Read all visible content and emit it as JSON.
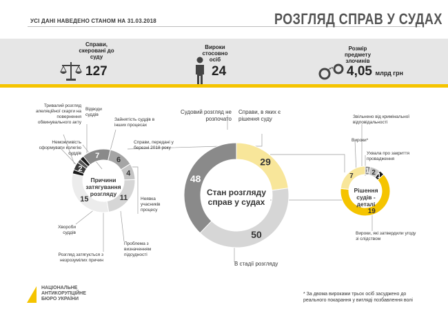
{
  "header": {
    "date_note": "УСІ ДАНІ НАВЕДЕНО СТАНОМ НА 31.03.2018",
    "title": "РОЗГЛЯД СПРАВ У СУДАХ"
  },
  "stats": [
    {
      "label": "Справи, скеровані до суду",
      "value": "127",
      "unit": ""
    },
    {
      "label": "Вироки стосовно осіб",
      "value": "24",
      "unit": ""
    },
    {
      "label": "Розмір предмету злочинів",
      "value": "4,05",
      "unit": "млрд грн"
    }
  ],
  "center_chart": {
    "title": "Стан розгляду справ у судах",
    "segments": [
      {
        "label": "Справи, в яких є рішення суду",
        "value": 29,
        "color": "#f8e69a"
      },
      {
        "label": "В стадії розгляду",
        "value": 50,
        "color": "#d6d6d6"
      },
      {
        "label": "Судовий розгляд не розпочато",
        "value": 48,
        "color": "#8a8a8a"
      }
    ]
  },
  "left_chart": {
    "title": "Причини затягування розгляду",
    "segments": [
      {
        "label": "Відводи суддів",
        "value": 7,
        "color": "#8a8a8a"
      },
      {
        "label": "Зайнятість суддів в інших процесах",
        "value": 6,
        "color": "#a5a5a5"
      },
      {
        "label": "Справи, передані у березні 2018 року",
        "value": 4,
        "color": "#c4c4c4"
      },
      {
        "label": "Неявка учасників процесу",
        "value": 11,
        "color": "#d6d6d6"
      },
      {
        "label": "Проблема з визначенням підсудності",
        "value": 15,
        "color": "#ececec"
      },
      {
        "label": "Розгляд затягується з незрозумілих причин",
        "value": 1,
        "color": "#1a1a1a"
      },
      {
        "label": "Хвороби суддів",
        "value": 2,
        "color": "#3a3a3a"
      },
      {
        "label": "Неможливість сформувати колегію суддів",
        "value": 1,
        "color": "#555555"
      },
      {
        "label": "Тривалий розгляд апеляційної скарги на повернення обвинувального акту",
        "value": 1,
        "color": "#1a1a1a"
      }
    ],
    "display_labels": [
      "7",
      "6",
      "4",
      "11",
      "15",
      "2",
      "1"
    ]
  },
  "right_chart": {
    "title": "Рішення судів - деталі",
    "footnote_mark": "*",
    "segments": [
      {
        "label": "Звільнено від кримінальної відповідальності",
        "value": 1,
        "color": "#8a8a8a"
      },
      {
        "label": "Вироки*",
        "value": 2,
        "color": "#c4c4c4"
      },
      {
        "label": "Ухвала про закриття провадження",
        "value": 1,
        "color": "#1a1a1a"
      },
      {
        "label": "Вироки, які затвердили угоду зі слідством",
        "value": 19,
        "color": "#f5c400"
      },
      {
        "label": "Вироки",
        "value": 7,
        "color": "#f8e69a"
      }
    ]
  },
  "footnote": "* За двома вироками трьох осіб засуджено до реального покарання у вигляді позбавлення волі",
  "logo": {
    "lines": [
      "НАЦІОНАЛЬНЕ",
      "АНТИКОРУПЦІЙНЕ",
      "БЮРО УКРАЇНИ"
    ]
  },
  "colors": {
    "accent": "#f5c400",
    "band": "#e6e6e6",
    "dark": "#333333"
  }
}
